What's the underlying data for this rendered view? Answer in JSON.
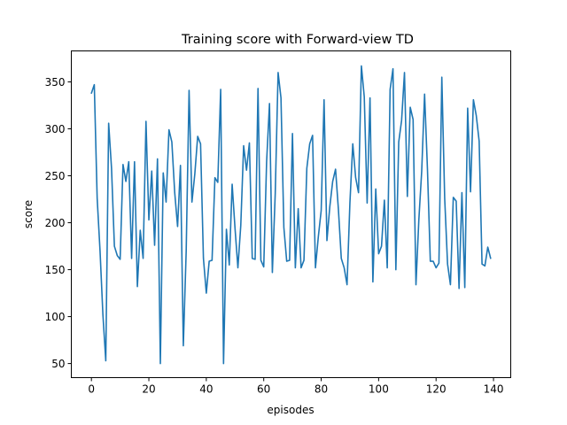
{
  "chart_data": {
    "type": "line",
    "title": "Training score with Forward-view TD",
    "xlabel": "episodes",
    "ylabel": "score",
    "xlim": [
      -7,
      146
    ],
    "ylim": [
      35,
      383
    ],
    "xticks": [
      0,
      20,
      40,
      60,
      80,
      100,
      120,
      140
    ],
    "yticks": [
      50,
      100,
      150,
      200,
      250,
      300,
      350
    ],
    "grid": false,
    "colors": {
      "line": "#1f77b4"
    },
    "series": [
      {
        "name": "",
        "x": [
          0,
          1,
          2,
          3,
          4,
          5,
          6,
          7,
          8,
          9,
          10,
          11,
          12,
          13,
          14,
          15,
          16,
          17,
          18,
          19,
          20,
          21,
          22,
          23,
          24,
          25,
          26,
          27,
          28,
          29,
          30,
          31,
          32,
          33,
          34,
          35,
          36,
          37,
          38,
          39,
          40,
          41,
          42,
          43,
          44,
          45,
          46,
          47,
          48,
          49,
          50,
          51,
          52,
          53,
          54,
          55,
          56,
          57,
          58,
          59,
          60,
          61,
          62,
          63,
          64,
          65,
          66,
          67,
          68,
          69,
          70,
          71,
          72,
          73,
          74,
          75,
          76,
          77,
          78,
          79,
          80,
          81,
          82,
          83,
          84,
          85,
          86,
          87,
          88,
          89,
          90,
          91,
          92,
          93,
          94,
          95,
          96,
          97,
          98,
          99,
          100,
          101,
          102,
          103,
          104,
          105,
          106,
          107,
          108,
          109,
          110,
          111,
          112,
          113,
          114,
          115,
          116,
          117,
          118,
          119,
          120,
          121,
          122,
          123,
          124,
          125,
          126,
          127,
          128,
          129,
          130,
          131,
          132,
          133,
          134,
          135,
          136,
          137,
          138,
          139
        ],
        "values": [
          338,
          347,
          226,
          170,
          102,
          53,
          306,
          258,
          175,
          165,
          161,
          262,
          244,
          265,
          162,
          265,
          132,
          192,
          162,
          308,
          203,
          255,
          176,
          268,
          50,
          253,
          222,
          299,
          286,
          232,
          196,
          261,
          69,
          170,
          341,
          222,
          252,
          292,
          284,
          162,
          125,
          159,
          160,
          248,
          243,
          342,
          50,
          193,
          155,
          241,
          194,
          152,
          197,
          282,
          256,
          285,
          162,
          161,
          343,
          160,
          153,
          265,
          327,
          147,
          231,
          360,
          333,
          195,
          159,
          160,
          295,
          152,
          215,
          152,
          160,
          258,
          284,
          293,
          152,
          185,
          213,
          331,
          181,
          217,
          244,
          257,
          214,
          162,
          152,
          134,
          221,
          284,
          248,
          232,
          367,
          334,
          221,
          333,
          137,
          236,
          167,
          175,
          224,
          152,
          342,
          364,
          150,
          286,
          309,
          360,
          228,
          323,
          310,
          134,
          203,
          255,
          337,
          257,
          159,
          159,
          152,
          157,
          355,
          226,
          156,
          134,
          227,
          223,
          130,
          232,
          131,
          322,
          233,
          331,
          314,
          287,
          156,
          154,
          174,
          162
        ]
      }
    ]
  }
}
